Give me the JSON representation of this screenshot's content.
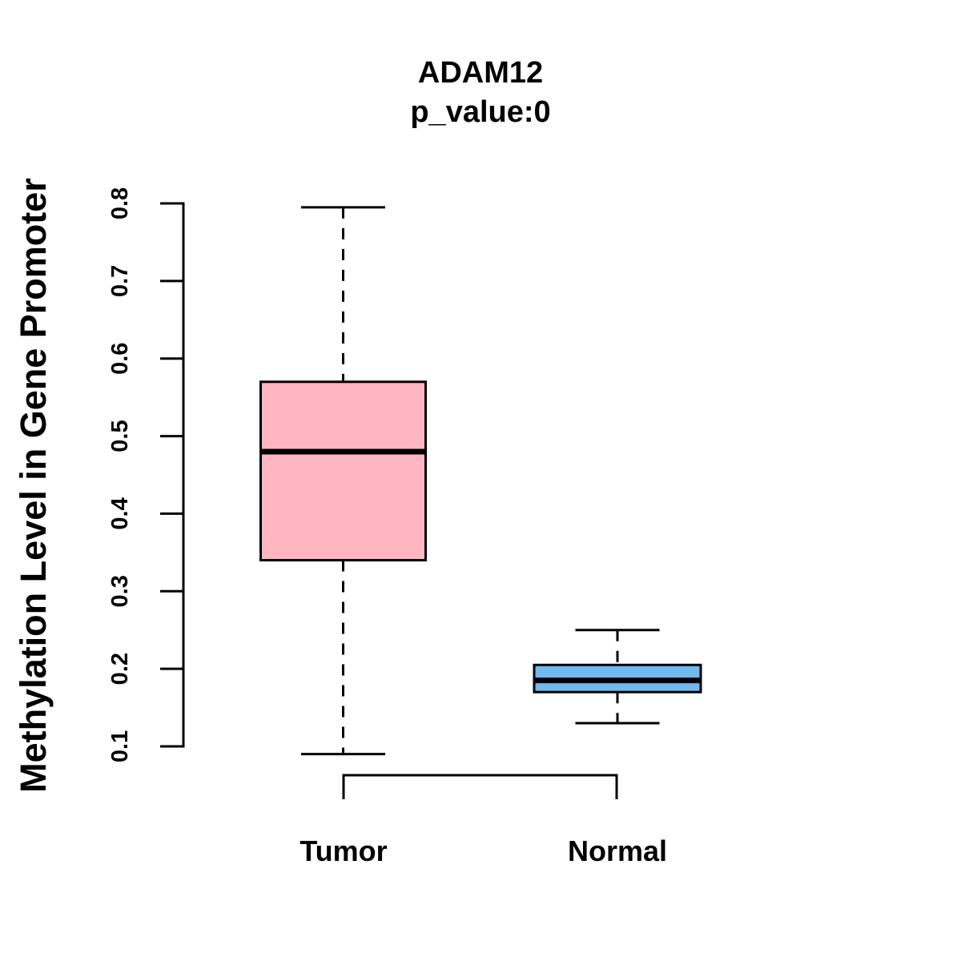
{
  "header": {
    "title": "ADAM12",
    "subtitle": "p_value:0"
  },
  "chart_data": {
    "type": "boxplot",
    "title": "ADAM12",
    "subtitle": "p_value:0",
    "ylabel": "Methylation Level in Gene Promoter",
    "xlabel": "",
    "categories": [
      "Tumor",
      "Normal"
    ],
    "series": [
      {
        "name": "Tumor",
        "box_color": "#FFB6C1",
        "whisker_low": 0.09,
        "q1": 0.34,
        "median": 0.48,
        "q3": 0.57,
        "whisker_high": 0.795
      },
      {
        "name": "Normal",
        "box_color": "#70B8F0",
        "whisker_low": 0.13,
        "q1": 0.17,
        "median": 0.185,
        "q3": 0.205,
        "whisker_high": 0.25
      }
    ],
    "yticks": [
      "0.1",
      "0.2",
      "0.3",
      "0.4",
      "0.5",
      "0.6",
      "0.7",
      "0.8"
    ],
    "ylim": [
      0.1,
      0.8
    ],
    "grid": false,
    "legend_position": "none",
    "line_color": "#000000",
    "background_color": "#FFFFFF",
    "whisker_style": "dashed"
  }
}
